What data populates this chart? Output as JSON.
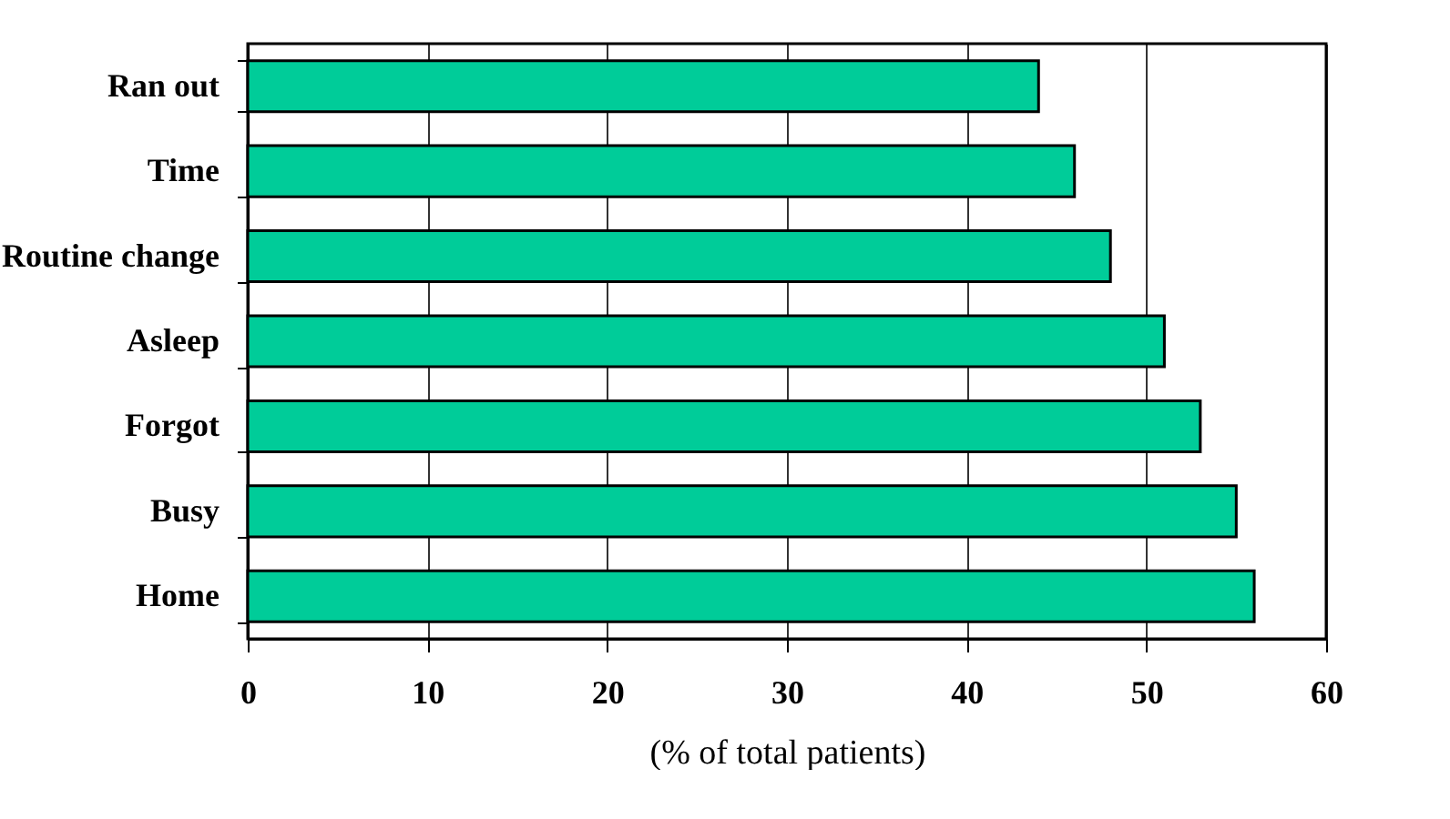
{
  "chart_data": {
    "type": "bar",
    "orientation": "horizontal",
    "xlabel": "(% of total patients)",
    "categories": [
      "Ran out",
      "Time",
      "Routine change",
      "Asleep",
      "Forgot",
      "Busy",
      "Home"
    ],
    "values": [
      44,
      46,
      48,
      51,
      53,
      55,
      56
    ],
    "color": "#00cc99",
    "xlim": [
      0,
      60
    ],
    "xticks": [
      0,
      10,
      20,
      30,
      40,
      50,
      60
    ],
    "grid": "x"
  }
}
